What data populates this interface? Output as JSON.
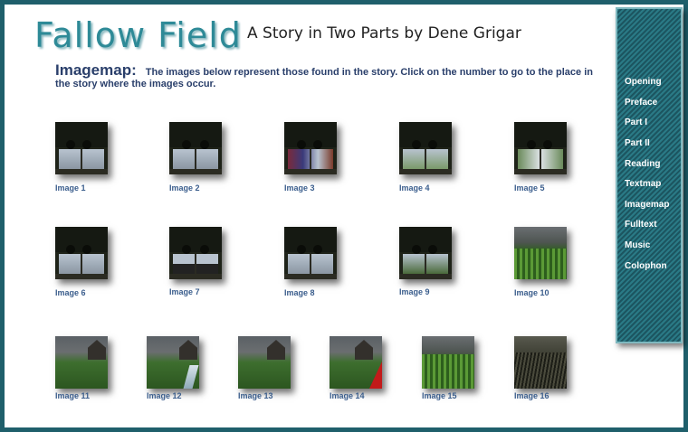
{
  "title": "Fallow Field",
  "subtitle": "A Story in Two Parts by Dene Grigar",
  "heading": {
    "label": "Imagemap:",
    "text": "The images below represent those found in the story.  Click on the number to go to the place in the story where the images occur."
  },
  "images": [
    {
      "caption": "Image 1"
    },
    {
      "caption": "Image 2"
    },
    {
      "caption": "Image 3"
    },
    {
      "caption": "Image 4"
    },
    {
      "caption": "Image 5"
    },
    {
      "caption": "Image 6"
    },
    {
      "caption": "Image 7"
    },
    {
      "caption": "Image 8"
    },
    {
      "caption": "Image 9"
    },
    {
      "caption": "Image 10"
    },
    {
      "caption": "Image 11"
    },
    {
      "caption": "Image 12"
    },
    {
      "caption": "Image 13"
    },
    {
      "caption": "Image 14"
    },
    {
      "caption": "Image 15"
    },
    {
      "caption": "Image 16"
    }
  ],
  "nav": [
    "Opening",
    "Preface",
    "Part I",
    "Part II",
    "Reading",
    "Textmap",
    "Imagemap",
    "Fulltext",
    "Music",
    "Colophon"
  ]
}
